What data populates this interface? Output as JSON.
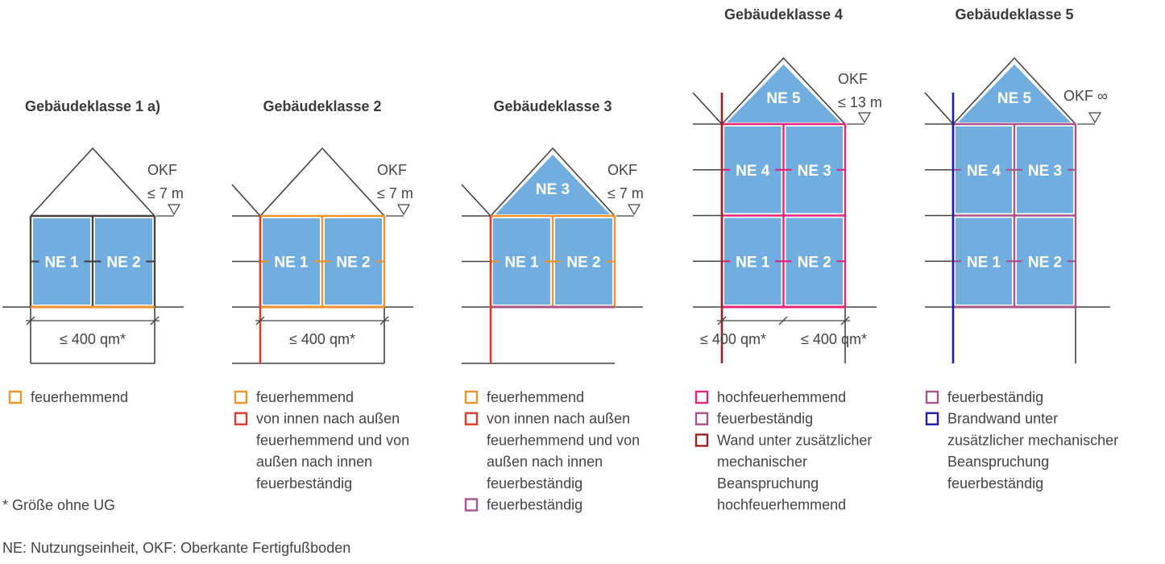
{
  "colors": {
    "unit_fill": "#72ade0",
    "line": "#444444",
    "feuerhemmend": "#f0932b",
    "von_innen_nach_aussen": "#e23a28",
    "feuerbestaendig": "#a8538a",
    "hochfeuerhemmend": "#e2267c",
    "wand_mechanisch": "#a01e1e",
    "brandwand": "#1c1caa"
  },
  "houses": [
    {
      "title": "Gebäudeklasse 1 a)",
      "units": [
        "NE 1",
        "NE 2"
      ],
      "okf": "OKF",
      "okf_height": "≤ 7 m",
      "areas": [
        "≤ 400 qm*"
      ],
      "legend": [
        {
          "color": "feuerhemmend",
          "label": [
            "feuerhemmend"
          ]
        }
      ]
    },
    {
      "title": "Gebäudeklasse 2",
      "units": [
        "NE 1",
        "NE 2"
      ],
      "okf": "OKF",
      "okf_height": "≤ 7 m",
      "areas": [
        "≤ 400 qm*"
      ],
      "legend": [
        {
          "color": "feuerhemmend",
          "label": [
            "feuerhemmend"
          ]
        },
        {
          "color": "von_innen_nach_aussen",
          "label": [
            "von innen nach außen",
            "feuerhemmend und von",
            "außen nach innen",
            "feuerbeständig"
          ]
        }
      ]
    },
    {
      "title": "Gebäudeklasse 3",
      "units": [
        "NE 1",
        "NE 2"
      ],
      "roof_unit": "NE 3",
      "okf": "OKF",
      "okf_height": "≤ 7 m",
      "areas": [],
      "legend": [
        {
          "color": "feuerhemmend",
          "label": [
            "feuerhemmend"
          ]
        },
        {
          "color": "von_innen_nach_aussen",
          "label": [
            "von innen nach außen",
            "feuerhemmend und von",
            "außen nach innen",
            "feuerbeständig"
          ]
        },
        {
          "color": "feuerbestaendig",
          "label": [
            "feuerbeständig"
          ]
        }
      ]
    },
    {
      "title": "Gebäudeklasse 4",
      "units": [
        "NE 1",
        "NE 2",
        "NE 4",
        "NE 3"
      ],
      "roof_unit": "NE 5",
      "okf": "OKF",
      "okf_height": "≤ 13 m",
      "areas": [
        "≤ 400 qm*",
        "≤ 400 qm*"
      ],
      "legend": [
        {
          "color": "hochfeuerhemmend",
          "label": [
            "hochfeuerhemmend"
          ]
        },
        {
          "color": "feuerbestaendig",
          "label": [
            "feuerbeständig"
          ]
        },
        {
          "color": "wand_mechanisch",
          "label": [
            "Wand unter zusätzlicher",
            "mechanischer",
            "Beanspruchung",
            "hochfeuerhemmend"
          ]
        }
      ]
    },
    {
      "title": "Gebäudeklasse 5",
      "units": [
        "NE 1",
        "NE 2",
        "NE 4",
        "NE 3"
      ],
      "roof_unit": "NE 5",
      "okf": "OKF ∞",
      "okf_height": "",
      "areas": [],
      "legend": [
        {
          "color": "feuerbestaendig",
          "label": [
            "feuerbeständig"
          ]
        },
        {
          "color": "brandwand",
          "label": [
            "Brandwand unter",
            "zusätzlicher mechanischer",
            "Beanspruchung",
            "feuerbeständig"
          ]
        }
      ]
    }
  ],
  "footnote": "* Größe ohne UG",
  "abbreviations": "NE: Nutzungseinheit, OKF: Oberkante Fertigfußboden"
}
